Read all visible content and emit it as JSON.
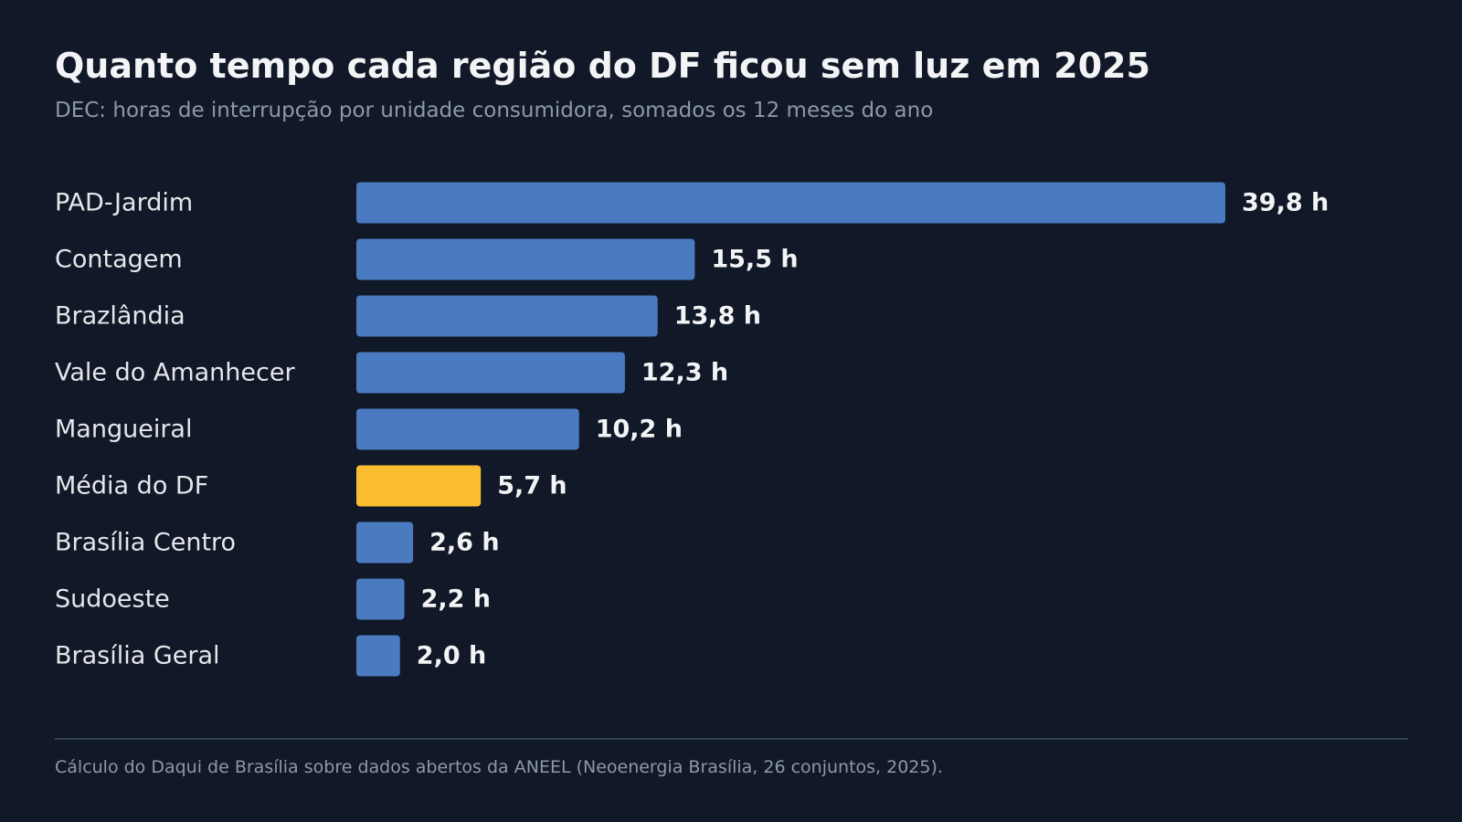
{
  "chart_data": {
    "type": "bar",
    "orientation": "horizontal",
    "title": "Quanto tempo cada região do DF ficou sem luz em 2025",
    "subtitle": "DEC: horas de interrupção por unidade consumidora, somados os 12 meses do ano",
    "categories": [
      "PAD-Jardim",
      "Contagem",
      "Brazlândia",
      "Vale do Amanhecer",
      "Mangueiral",
      "Média do DF",
      "Brasília Centro",
      "Sudoeste",
      "Brasília Geral"
    ],
    "values": [
      39.8,
      15.5,
      13.8,
      12.3,
      10.2,
      5.7,
      2.6,
      2.2,
      2.0
    ],
    "value_labels": [
      "39,8 h",
      "15,5 h",
      "13,8 h",
      "12,3 h",
      "10,2 h",
      "5,7 h",
      "2,6 h",
      "2,2 h",
      "2,0 h"
    ],
    "highlight_category": "Média do DF",
    "colors": {
      "bar": "#4a7bc0",
      "highlight": "#fbbd30",
      "background": "#111827"
    },
    "xlabel": "",
    "ylabel": "",
    "grid": false,
    "legend": "none"
  },
  "footer": {
    "source": "Cálculo do Daqui de Brasília sobre dados abertos da ANEEL (Neoenergia Brasília, 26 conjuntos, 2025)."
  }
}
